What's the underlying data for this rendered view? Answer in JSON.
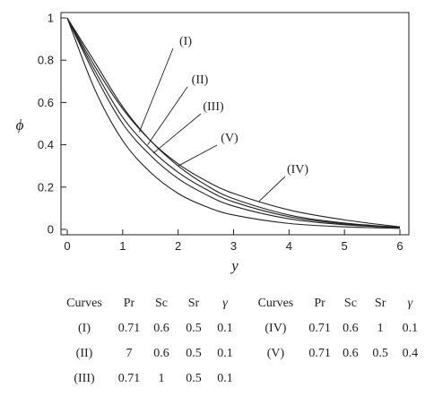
{
  "chart_data": {
    "type": "line",
    "xlabel": "y",
    "ylabel": "ϕ",
    "xlim": [
      0,
      6
    ],
    "ylim": [
      0,
      1
    ],
    "x_ticks": [
      "0",
      "1",
      "2",
      "3",
      "4",
      "5",
      "6"
    ],
    "y_ticks": [
      "0",
      "0.2",
      "0.4",
      "0.6",
      "0.8",
      "1"
    ],
    "grid": false,
    "series": [
      {
        "name": "(I)",
        "x": [
          0,
          0.5,
          1,
          1.5,
          2,
          2.5,
          3,
          4,
          5,
          6
        ],
        "values": [
          1,
          0.79,
          0.58,
          0.42,
          0.3,
          0.21,
          0.145,
          0.068,
          0.03,
          0.01
        ]
      },
      {
        "name": "(II)",
        "x": [
          0,
          0.5,
          1,
          1.5,
          2,
          2.5,
          3,
          4,
          5,
          6
        ],
        "values": [
          1,
          0.73,
          0.5,
          0.35,
          0.24,
          0.165,
          0.11,
          0.05,
          0.022,
          0.008
        ]
      },
      {
        "name": "(III)",
        "x": [
          0,
          0.5,
          1,
          1.5,
          2,
          2.5,
          3,
          4,
          5,
          6
        ],
        "values": [
          1,
          0.66,
          0.42,
          0.27,
          0.17,
          0.108,
          0.068,
          0.028,
          0.012,
          0.005
        ]
      },
      {
        "name": "(IV)",
        "x": [
          0,
          0.5,
          1,
          1.5,
          2,
          2.5,
          3,
          4,
          5,
          6
        ],
        "values": [
          1,
          0.77,
          0.57,
          0.42,
          0.31,
          0.23,
          0.17,
          0.092,
          0.045,
          0.012
        ]
      },
      {
        "name": "(V)",
        "x": [
          0,
          0.5,
          1,
          1.5,
          2,
          2.5,
          3,
          4,
          5,
          6
        ],
        "values": [
          1,
          0.75,
          0.53,
          0.38,
          0.27,
          0.19,
          0.13,
          0.06,
          0.026,
          0.009
        ]
      }
    ],
    "annotations": [
      {
        "text": "(I)",
        "series": "(I)",
        "pointer_to": [
          1.3,
          0.46
        ]
      },
      {
        "text": "(II)",
        "series": "(II)",
        "pointer_to": [
          1.45,
          0.4
        ]
      },
      {
        "text": "(III)",
        "series": "(III)",
        "pointer_to": [
          1.55,
          0.36
        ]
      },
      {
        "text": "(V)",
        "series": "(V)",
        "pointer_to": [
          2.0,
          0.3
        ]
      },
      {
        "text": "(IV)",
        "series": "(IV)",
        "pointer_to": [
          3.45,
          0.13
        ]
      }
    ]
  },
  "table": {
    "headers": [
      "Curves",
      "Pr",
      "Sc",
      "Sr",
      "γ"
    ],
    "left_rows": [
      [
        "(I)",
        "0.71",
        "0.6",
        "0.5",
        "0.1"
      ],
      [
        "(II)",
        "7",
        "0.6",
        "0.5",
        "0.1"
      ],
      [
        "(III)",
        "0.71",
        "1",
        "0.5",
        "0.1"
      ]
    ],
    "right_rows": [
      [
        "(IV)",
        "0.71",
        "0.6",
        "1",
        "0.1"
      ],
      [
        "(V)",
        "0.71",
        "0.6",
        "0.5",
        "0.4"
      ]
    ]
  }
}
